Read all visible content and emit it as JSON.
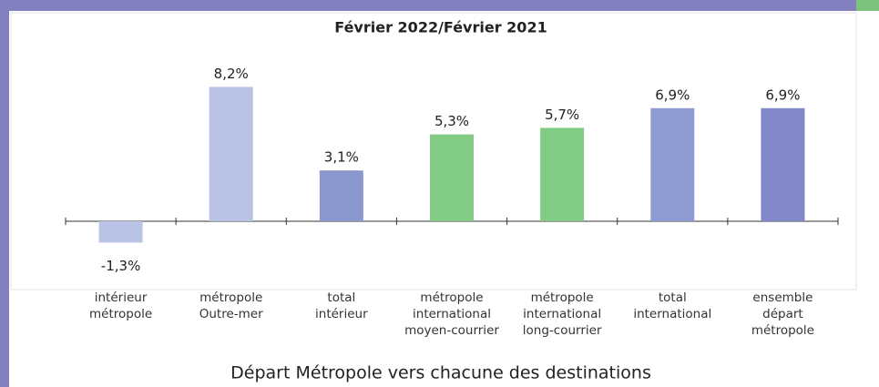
{
  "chart_data": {
    "type": "bar",
    "title": "Février 2022/Février 2021",
    "x_label": "Départ Métropole vers chacune des destinations",
    "categories": [
      "intérieur métropole",
      "métropole Outre-mer",
      "total intérieur",
      "métropole international moyen-courrier",
      "métropole international long-courrier",
      "total international",
      "ensemble départ métropole"
    ],
    "values": [
      -1.3,
      8.2,
      3.1,
      5.3,
      5.7,
      6.9,
      6.9
    ],
    "value_labels": [
      "-1,3%",
      "8,2%",
      "3,1%",
      "5,3%",
      "5,7%",
      "6,9%",
      "6,9%"
    ],
    "colors": [
      "#b9c3e5",
      "#b9c3e5",
      "#8b98d0",
      "#82cb84",
      "#82cb84",
      "#8d9bd2",
      "#8088c9"
    ],
    "ylim": [
      -2,
      9
    ]
  }
}
